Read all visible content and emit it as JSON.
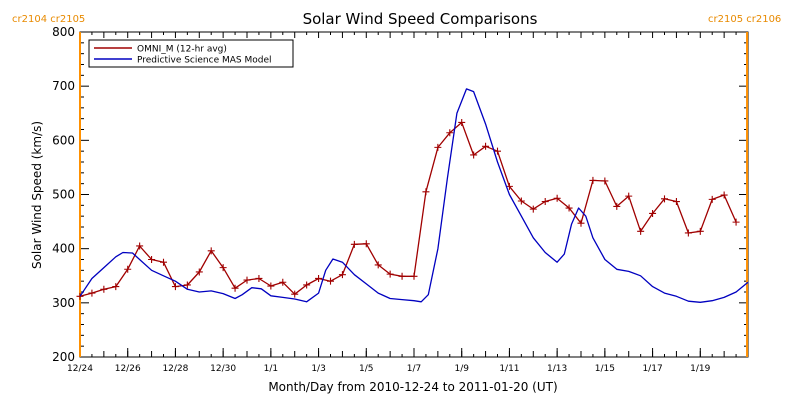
{
  "chart_data": {
    "type": "line",
    "title": "Solar Wind Speed Comparisons",
    "xlabel": "Month/Day from 2010-12-24 to 2011-01-20 (UT)",
    "ylabel": "Solar Wind Speed (km/s)",
    "xlim_days": [
      0,
      28
    ],
    "ylim": [
      200,
      800
    ],
    "x_unit": "days after 2010-12-24 00:00 UT",
    "x_ticks": [
      {
        "day": 0,
        "label": "12/24"
      },
      {
        "day": 2,
        "label": "12/26"
      },
      {
        "day": 4,
        "label": "12/28"
      },
      {
        "day": 6,
        "label": "12/30"
      },
      {
        "day": 8,
        "label": "1/1"
      },
      {
        "day": 10,
        "label": "1/3"
      },
      {
        "day": 12,
        "label": "1/5"
      },
      {
        "day": 14,
        "label": "1/7"
      },
      {
        "day": 16,
        "label": "1/9"
      },
      {
        "day": 18,
        "label": "1/11"
      },
      {
        "day": 20,
        "label": "1/13"
      },
      {
        "day": 22,
        "label": "1/15"
      },
      {
        "day": 24,
        "label": "1/17"
      },
      {
        "day": 26,
        "label": "1/19"
      }
    ],
    "y_ticks": [
      200,
      300,
      400,
      500,
      600,
      700,
      800
    ],
    "carrington": [
      {
        "label": "cr2104 cr2105",
        "day": 0
      },
      {
        "label": "cr2105 cr2106",
        "day": 27.96
      }
    ],
    "legend": {
      "position": "top-left"
    },
    "series": [
      {
        "name": "OMNI_M (12-hr avg)",
        "color": "#a00000",
        "marker": "plus",
        "points": [
          [
            0.0,
            312
          ],
          [
            0.5,
            318
          ],
          [
            1.0,
            325
          ],
          [
            1.5,
            330
          ],
          [
            2.0,
            362
          ],
          [
            2.5,
            405
          ],
          [
            3.0,
            380
          ],
          [
            3.5,
            375
          ],
          [
            4.0,
            330
          ],
          [
            4.5,
            333
          ],
          [
            5.0,
            357
          ],
          [
            5.5,
            396
          ],
          [
            6.0,
            365
          ],
          [
            6.5,
            327
          ],
          [
            7.0,
            342
          ],
          [
            7.5,
            345
          ],
          [
            8.0,
            331
          ],
          [
            8.5,
            338
          ],
          [
            9.0,
            316
          ],
          [
            9.5,
            333
          ],
          [
            10.0,
            345
          ],
          [
            10.5,
            340
          ],
          [
            11.0,
            352
          ],
          [
            11.5,
            408
          ],
          [
            12.0,
            409
          ],
          [
            12.5,
            370
          ],
          [
            13.0,
            353
          ],
          [
            13.5,
            349
          ],
          [
            14.0,
            349
          ],
          [
            14.5,
            505
          ],
          [
            15.0,
            587
          ],
          [
            15.5,
            614
          ],
          [
            16.0,
            633
          ],
          [
            16.5,
            573
          ],
          [
            17.0,
            589
          ],
          [
            17.5,
            580
          ],
          [
            18.0,
            515
          ],
          [
            18.5,
            488
          ],
          [
            19.0,
            473
          ],
          [
            19.5,
            487
          ],
          [
            20.0,
            493
          ],
          [
            20.5,
            475
          ],
          [
            21.0,
            447
          ],
          [
            21.5,
            526
          ],
          [
            22.0,
            525
          ],
          [
            22.5,
            478
          ],
          [
            23.0,
            497
          ],
          [
            23.5,
            432
          ],
          [
            24.0,
            465
          ],
          [
            24.5,
            492
          ],
          [
            25.0,
            487
          ],
          [
            25.5,
            429
          ],
          [
            26.0,
            432
          ],
          [
            26.5,
            491
          ],
          [
            27.0,
            499
          ],
          [
            27.5,
            449
          ]
        ]
      },
      {
        "name": "Predictive Science MAS Model",
        "color": "#0000c0",
        "marker": "none",
        "points": [
          [
            0.0,
            312
          ],
          [
            0.5,
            345
          ],
          [
            1.0,
            365
          ],
          [
            1.5,
            385
          ],
          [
            1.8,
            393
          ],
          [
            2.2,
            392
          ],
          [
            2.5,
            380
          ],
          [
            3.0,
            360
          ],
          [
            3.5,
            350
          ],
          [
            4.0,
            340
          ],
          [
            4.5,
            325
          ],
          [
            5.0,
            320
          ],
          [
            5.5,
            322
          ],
          [
            6.0,
            317
          ],
          [
            6.5,
            308
          ],
          [
            6.8,
            315
          ],
          [
            7.2,
            328
          ],
          [
            7.6,
            326
          ],
          [
            8.0,
            313
          ],
          [
            8.5,
            310
          ],
          [
            9.0,
            307
          ],
          [
            9.5,
            302
          ],
          [
            10.0,
            318
          ],
          [
            10.3,
            360
          ],
          [
            10.6,
            381
          ],
          [
            11.0,
            375
          ],
          [
            11.5,
            352
          ],
          [
            12.0,
            335
          ],
          [
            12.5,
            318
          ],
          [
            13.0,
            308
          ],
          [
            13.5,
            306
          ],
          [
            14.0,
            304
          ],
          [
            14.3,
            302
          ],
          [
            14.6,
            315
          ],
          [
            15.0,
            400
          ],
          [
            15.4,
            530
          ],
          [
            15.8,
            650
          ],
          [
            16.2,
            695
          ],
          [
            16.5,
            690
          ],
          [
            17.0,
            630
          ],
          [
            17.5,
            560
          ],
          [
            18.0,
            500
          ],
          [
            18.5,
            460
          ],
          [
            19.0,
            420
          ],
          [
            19.5,
            393
          ],
          [
            20.0,
            375
          ],
          [
            20.3,
            390
          ],
          [
            20.6,
            445
          ],
          [
            20.9,
            475
          ],
          [
            21.2,
            460
          ],
          [
            21.5,
            420
          ],
          [
            22.0,
            380
          ],
          [
            22.5,
            362
          ],
          [
            23.0,
            358
          ],
          [
            23.5,
            350
          ],
          [
            24.0,
            330
          ],
          [
            24.5,
            318
          ],
          [
            25.0,
            312
          ],
          [
            25.5,
            303
          ],
          [
            26.0,
            301
          ],
          [
            26.5,
            304
          ],
          [
            27.0,
            310
          ],
          [
            27.5,
            320
          ],
          [
            28.0,
            338
          ]
        ]
      }
    ]
  }
}
